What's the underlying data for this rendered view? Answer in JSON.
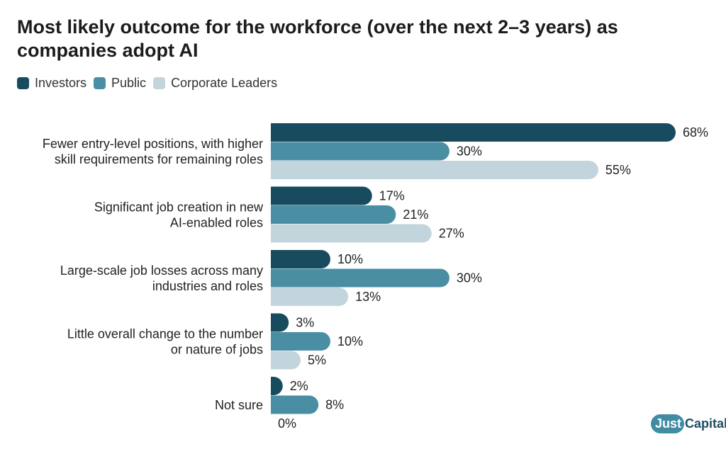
{
  "header": {
    "title": "Most likely outcome for the workforce (over the next 2–3 years) as companies adopt AI"
  },
  "brand": {
    "part1": "Just",
    "part2": "Capital"
  },
  "chart_data": {
    "type": "bar",
    "orientation": "horizontal",
    "title": "Most likely outcome for the workforce (over the next 2–3 years) as companies adopt AI",
    "categories": [
      [
        "Fewer entry-level positions, with higher",
        "skill requirements for remaining roles"
      ],
      [
        "Significant job creation in new",
        "AI-enabled roles"
      ],
      [
        "Large-scale job losses across many",
        "industries and roles"
      ],
      [
        "Little overall change to the number",
        "or nature of jobs"
      ],
      [
        "Not sure"
      ]
    ],
    "series": [
      {
        "name": "Investors",
        "color": "#194b5e",
        "values": [
          68,
          17,
          10,
          3,
          2
        ]
      },
      {
        "name": "Public",
        "color": "#4a8ea4",
        "values": [
          30,
          21,
          30,
          10,
          8
        ]
      },
      {
        "name": "Corporate Leaders",
        "color": "#c3d5dc",
        "values": [
          55,
          27,
          13,
          5,
          0
        ]
      }
    ],
    "value_suffix": "%",
    "xlim": [
      0,
      68
    ],
    "legend_position": "top-left",
    "grid": false
  }
}
